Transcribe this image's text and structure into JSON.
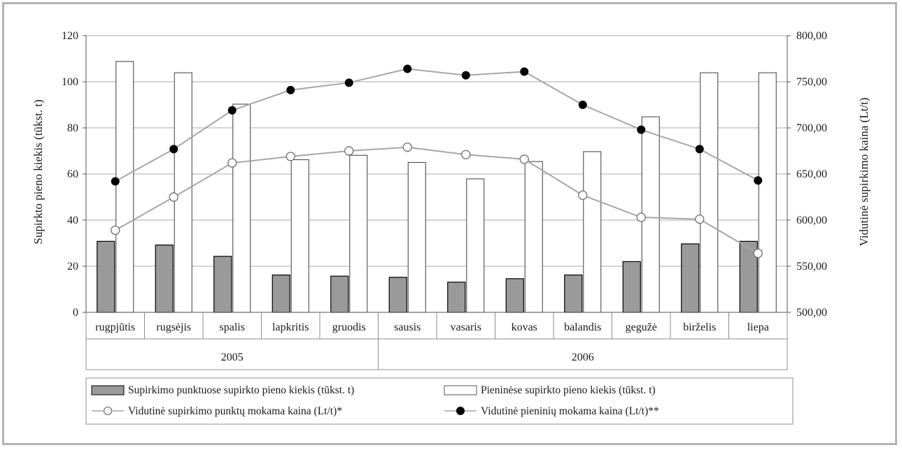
{
  "chart_data": {
    "type": "bar",
    "categories": [
      "rugpjūtis",
      "rugsėjis",
      "spalis",
      "lapkritis",
      "gruodis",
      "sausis",
      "vasaris",
      "kovas",
      "balandis",
      "gegužė",
      "birželis",
      "liepa"
    ],
    "groups": [
      {
        "label": "2005",
        "span": [
          0,
          4
        ]
      },
      {
        "label": "2006",
        "span": [
          5,
          11
        ]
      }
    ],
    "ylabel": "Supirkto pieno kiekis (tūkst. t)",
    "y2label": "Vidutinė supirkimo kaina (Lt/t)",
    "ylim": [
      0,
      120
    ],
    "y2lim": [
      500,
      800
    ],
    "yticks": [
      "0",
      "20",
      "40",
      "60",
      "80",
      "100",
      "120"
    ],
    "y2ticks": [
      "500,00",
      "550,00",
      "600,00",
      "650,00",
      "700,00",
      "750,00",
      "800,00"
    ],
    "grid": true,
    "legend_position": "bottom",
    "series": [
      {
        "name": "Supirkimo punktuose supirkto pieno kiekis (tūkst. t)",
        "type": "bar",
        "axis": "left",
        "color": "#9a9a9a",
        "values": [
          30.8,
          29.2,
          24.3,
          16.2,
          15.7,
          15.2,
          13.1,
          14.6,
          16.2,
          22.0,
          29.7,
          30.8
        ]
      },
      {
        "name": "Pieninėse supirkto pieno kiekis (tūkst. t)",
        "type": "bar",
        "axis": "left",
        "color": "#ffffff",
        "values": [
          108.8,
          103.9,
          90.3,
          66.2,
          68.1,
          65.0,
          57.9,
          65.4,
          69.7,
          84.8,
          103.9,
          103.9
        ]
      },
      {
        "name": "Vidutinė supirkimo punktų mokama kaina (Lt/t)*",
        "type": "line",
        "axis": "right",
        "marker": "open-circle",
        "values": [
          589,
          625,
          662,
          669,
          675,
          679,
          671,
          666,
          627,
          603,
          601,
          564
        ]
      },
      {
        "name": "Vidutinė pieninių mokama kaina (Lt/t)**",
        "type": "line",
        "axis": "right",
        "marker": "filled-circle",
        "values": [
          642,
          677,
          719,
          741,
          749,
          764,
          757,
          761,
          725,
          698,
          677,
          643
        ]
      }
    ]
  }
}
